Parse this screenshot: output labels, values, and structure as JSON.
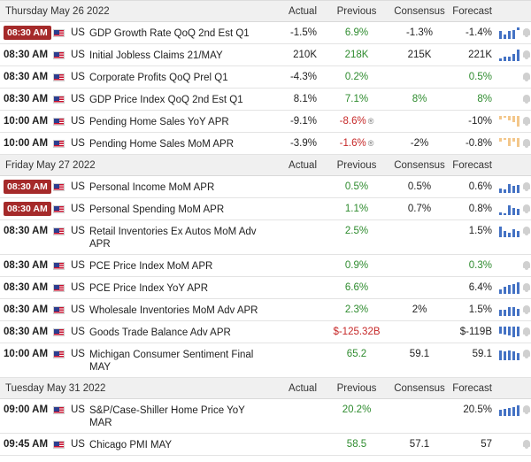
{
  "columns": {
    "actual": "Actual",
    "previous": "Previous",
    "consensus": "Consensus",
    "forecast": "Forecast"
  },
  "days": [
    {
      "date": "Thursday May 26 2022",
      "events": [
        {
          "time": "08:30 AM",
          "highlight": true,
          "country": "US",
          "name": "GDP Growth Rate QoQ 2nd Est Q1",
          "actual": "-1.5%",
          "previous": "6.9%",
          "previous_color": "green",
          "revised": "",
          "consensus": "-1.3%",
          "forecast": "-1.4%",
          "chart": [
            8,
            5,
            8,
            9,
            3
          ],
          "chart_color": "blue",
          "chart_hang": [
            false,
            false,
            false,
            false,
            true
          ]
        },
        {
          "time": "08:30 AM",
          "highlight": false,
          "country": "US",
          "name": "Initial Jobless Claims 21/MAY",
          "actual": "210K",
          "previous": "218K",
          "previous_color": "green",
          "revised": "",
          "consensus": "215K",
          "forecast": "221K",
          "chart": [
            3,
            5,
            5,
            7,
            12
          ],
          "chart_color": "blue"
        },
        {
          "time": "08:30 AM",
          "highlight": false,
          "country": "US",
          "name": "Corporate Profits QoQ Prel Q1",
          "actual": "-4.3%",
          "previous": "0.2%",
          "previous_color": "green",
          "revised": "",
          "consensus": "",
          "forecast": "0.5%",
          "forecast_color": "green",
          "chart": [],
          "chart_color": "blue"
        },
        {
          "time": "08:30 AM",
          "highlight": false,
          "country": "US",
          "name": "GDP Price Index QoQ 2nd Est Q1",
          "actual": "8.1%",
          "previous": "7.1%",
          "previous_color": "green",
          "revised": "",
          "consensus": "8%",
          "consensus_color": "green",
          "forecast": "8%",
          "forecast_color": "green",
          "chart": [],
          "chart_color": "blue"
        },
        {
          "time": "10:00 AM",
          "highlight": false,
          "country": "US",
          "name": "Pending Home Sales YoY APR",
          "actual": "-9.1%",
          "previous": "-8.6%",
          "previous_color": "red",
          "revised": "®",
          "consensus": "",
          "forecast": "-10%",
          "chart": [
            4,
            2,
            5,
            6,
            11
          ],
          "chart_color": "orange",
          "chart_hang": [
            true,
            true,
            true,
            true,
            true
          ]
        },
        {
          "time": "10:00 AM",
          "highlight": false,
          "country": "US",
          "name": "Pending Home Sales MoM APR",
          "actual": "-3.9%",
          "previous": "-1.6%",
          "previous_color": "red",
          "revised": "®",
          "consensus": "-2%",
          "forecast": "-0.8%",
          "chart": [
            4,
            2,
            8,
            4,
            9
          ],
          "chart_color": "orange",
          "chart_hang": [
            true,
            true,
            true,
            true,
            true
          ]
        }
      ]
    },
    {
      "date": "Friday May 27 2022",
      "events": [
        {
          "time": "08:30 AM",
          "highlight": true,
          "country": "US",
          "name": "Personal Income MoM APR",
          "actual": "",
          "previous": "0.5%",
          "previous_color": "green",
          "revised": "",
          "consensus": "0.5%",
          "forecast": "0.6%",
          "chart": [
            5,
            4,
            9,
            7,
            8
          ],
          "chart_color": "blue"
        },
        {
          "time": "08:30 AM",
          "highlight": true,
          "country": "US",
          "name": "Personal Spending MoM APR",
          "actual": "",
          "previous": "1.1%",
          "previous_color": "green",
          "revised": "",
          "consensus": "0.7%",
          "forecast": "0.8%",
          "chart": [
            3,
            2,
            10,
            7,
            6
          ],
          "chart_color": "blue"
        },
        {
          "time": "08:30 AM",
          "highlight": false,
          "country": "US",
          "name": "Retail Inventories Ex Autos MoM Adv APR",
          "actual": "",
          "previous": "2.5%",
          "previous_color": "green",
          "revised": "",
          "consensus": "",
          "forecast": "1.5%",
          "chart": [
            11,
            6,
            5,
            8,
            6
          ],
          "chart_color": "blue"
        },
        {
          "time": "08:30 AM",
          "highlight": false,
          "country": "US",
          "name": "PCE Price Index MoM APR",
          "actual": "",
          "previous": "0.9%",
          "previous_color": "green",
          "revised": "",
          "consensus": "",
          "forecast": "0.3%",
          "forecast_color": "green",
          "chart": [],
          "chart_color": "blue"
        },
        {
          "time": "08:30 AM",
          "highlight": false,
          "country": "US",
          "name": "PCE Price Index YoY APR",
          "actual": "",
          "previous": "6.6%",
          "previous_color": "green",
          "revised": "",
          "consensus": "",
          "forecast": "6.4%",
          "chart": [
            5,
            7,
            9,
            10,
            12
          ],
          "chart_color": "blue"
        },
        {
          "time": "08:30 AM",
          "highlight": false,
          "country": "US",
          "name": "Wholesale Inventories MoM Adv APR",
          "actual": "",
          "previous": "2.3%",
          "previous_color": "green",
          "revised": "",
          "consensus": "2%",
          "forecast": "1.5%",
          "chart": [
            6,
            6,
            9,
            9,
            7
          ],
          "chart_color": "blue"
        },
        {
          "time": "08:30 AM",
          "highlight": false,
          "country": "US",
          "name": "Goods Trade Balance Adv APR",
          "actual": "",
          "previous": "$-125.32B",
          "previous_color": "red",
          "revised": "",
          "consensus": "",
          "forecast": "$-119B",
          "chart": [
            7,
            8,
            9,
            11,
            10
          ],
          "chart_color": "blue",
          "chart_hang": [
            true,
            true,
            true,
            true,
            true
          ]
        },
        {
          "time": "10:00 AM",
          "highlight": false,
          "country": "US",
          "name": "Michigan Consumer Sentiment Final MAY",
          "actual": "",
          "previous": "65.2",
          "previous_color": "green",
          "revised": "",
          "consensus": "59.1",
          "forecast": "59.1",
          "chart": [
            10,
            9,
            10,
            9,
            7
          ],
          "chart_color": "blue"
        }
      ]
    },
    {
      "date": "Tuesday May 31 2022",
      "events": [
        {
          "time": "09:00 AM",
          "highlight": false,
          "country": "US",
          "name": "S&P/Case-Shiller Home Price YoY MAR",
          "actual": "",
          "previous": "20.2%",
          "previous_color": "green",
          "revised": "",
          "consensus": "",
          "forecast": "20.5%",
          "chart": [
            6,
            7,
            8,
            9,
            11
          ],
          "chart_color": "blue"
        },
        {
          "time": "09:45 AM",
          "highlight": false,
          "country": "US",
          "name": "Chicago PMI MAY",
          "actual": "",
          "previous": "58.5",
          "previous_color": "green",
          "revised": "",
          "consensus": "57.1",
          "forecast": "57",
          "chart": [],
          "chart_color": "blue"
        }
      ]
    }
  ]
}
